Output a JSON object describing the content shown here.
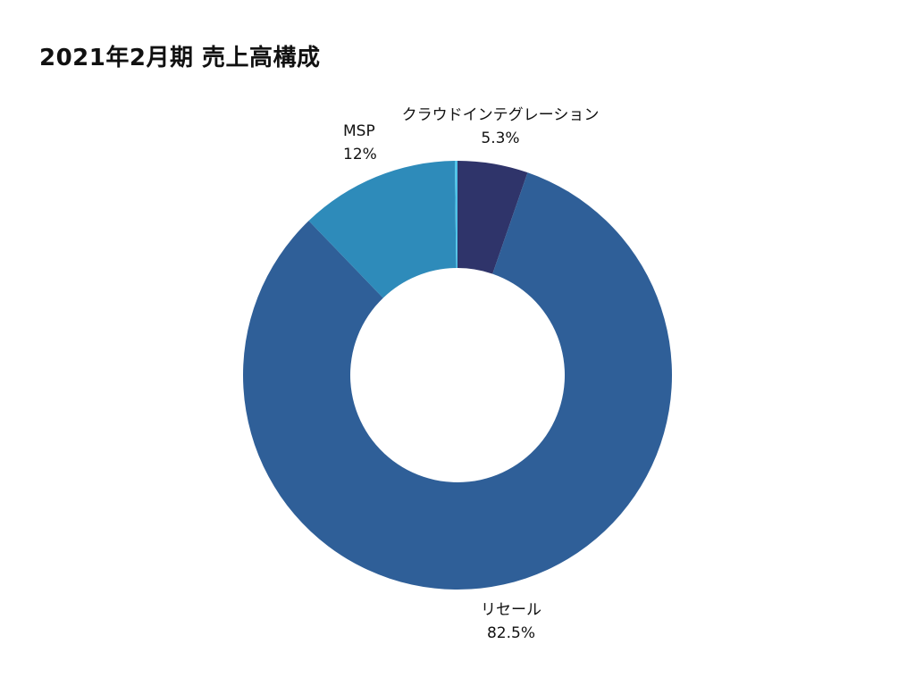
{
  "chart_data": {
    "type": "pie",
    "subtype": "donut",
    "title": "2021年2月期  売上高構成",
    "categories": [
      "クラウドインテグレーション",
      "リセール",
      "MSP",
      ""
    ],
    "values": [
      5.3,
      82.5,
      12,
      0.2
    ],
    "value_labels": [
      "5.3%",
      "82.5%",
      "12%",
      ""
    ],
    "colors": [
      "#2f346a",
      "#2f5f98",
      "#2e8bba",
      "#4fc3e8"
    ],
    "start_angle": 0,
    "direction": "clockwise",
    "inner_radius_ratio": 0.5,
    "legend": "none",
    "unit": "%"
  },
  "labels": {
    "cloud": {
      "name": "クラウドインテグレーション",
      "value": "5.3%"
    },
    "resale": {
      "name": "リセール",
      "value": "82.5%"
    },
    "msp": {
      "name": "MSP",
      "value": "12%"
    }
  }
}
